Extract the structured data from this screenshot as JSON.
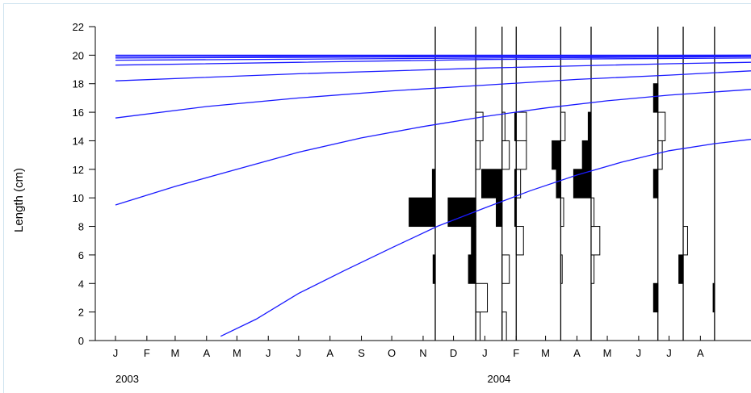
{
  "chart_data": {
    "type": "line",
    "title": "",
    "ylabel": "Length (cm)",
    "xlabel": "",
    "ylim": [
      0,
      22
    ],
    "yticks": [
      0,
      2,
      4,
      6,
      8,
      10,
      12,
      14,
      16,
      18,
      20,
      22
    ],
    "xlim": [
      "2003-01-01",
      "2004-09-20"
    ],
    "month_ticks": [
      {
        "label": "J",
        "date": "2003-01-01"
      },
      {
        "label": "F",
        "date": "2003-02-01"
      },
      {
        "label": "M",
        "date": "2003-03-01"
      },
      {
        "label": "A",
        "date": "2003-04-01"
      },
      {
        "label": "M",
        "date": "2003-05-01"
      },
      {
        "label": "J",
        "date": "2003-06-01"
      },
      {
        "label": "J",
        "date": "2003-07-01"
      },
      {
        "label": "A",
        "date": "2003-08-01"
      },
      {
        "label": "S",
        "date": "2003-09-01"
      },
      {
        "label": "O",
        "date": "2003-10-01"
      },
      {
        "label": "N",
        "date": "2003-11-01"
      },
      {
        "label": "D",
        "date": "2003-12-01"
      },
      {
        "label": "J",
        "date": "2004-01-01"
      },
      {
        "label": "F",
        "date": "2004-02-01"
      },
      {
        "label": "M",
        "date": "2004-03-01"
      },
      {
        "label": "A",
        "date": "2004-04-01"
      },
      {
        "label": "M",
        "date": "2004-05-01"
      },
      {
        "label": "J",
        "date": "2004-06-01"
      },
      {
        "label": "J",
        "date": "2004-07-01"
      },
      {
        "label": "A",
        "date": "2004-08-01"
      }
    ],
    "year_labels": [
      {
        "label": "2003",
        "date": "2003-01-01"
      },
      {
        "label": "2004",
        "date": "2004-01-15"
      }
    ],
    "line_color": "#1a1aff",
    "growth_curves": [
      {
        "x": [
          "2003-04-15",
          "2003-05-20",
          "2003-07-01",
          "2003-08-15",
          "2003-10-01",
          "2003-11-15",
          "2004-01-01",
          "2004-02-15",
          "2004-04-01",
          "2004-05-15",
          "2004-07-01",
          "2004-08-15",
          "2004-09-20"
        ],
        "y": [
          0.3,
          1.5,
          3.3,
          4.9,
          6.5,
          8.0,
          9.3,
          10.5,
          11.6,
          12.5,
          13.3,
          13.8,
          14.1
        ]
      },
      {
        "x": [
          "2003-01-01",
          "2003-03-01",
          "2003-05-01",
          "2003-07-01",
          "2003-09-01",
          "2003-11-01",
          "2004-01-01",
          "2004-03-01",
          "2004-05-01",
          "2004-07-01",
          "2004-09-20"
        ],
        "y": [
          9.5,
          10.8,
          12.0,
          13.2,
          14.2,
          15.0,
          15.7,
          16.3,
          16.8,
          17.2,
          17.6
        ]
      },
      {
        "x": [
          "2003-01-01",
          "2003-04-01",
          "2003-07-01",
          "2003-10-01",
          "2004-01-01",
          "2004-04-01",
          "2004-07-01",
          "2004-09-20"
        ],
        "y": [
          15.6,
          16.4,
          17.0,
          17.5,
          17.9,
          18.3,
          18.6,
          18.9
        ]
      },
      {
        "x": [
          "2003-01-01",
          "2003-07-01",
          "2004-01-01",
          "2004-07-01",
          "2004-09-20"
        ],
        "y": [
          18.2,
          18.7,
          19.1,
          19.4,
          19.5
        ]
      },
      {
        "x": [
          "2003-01-01",
          "2003-07-01",
          "2004-01-01",
          "2004-09-20"
        ],
        "y": [
          19.3,
          19.5,
          19.7,
          19.8
        ]
      },
      {
        "x": [
          "2003-01-01",
          "2004-09-20"
        ],
        "y": [
          19.65,
          19.9
        ]
      },
      {
        "x": [
          "2003-01-01",
          "2004-09-20"
        ],
        "y": [
          19.8,
          19.95
        ]
      },
      {
        "x": [
          "2003-01-01",
          "2004-09-20"
        ],
        "y": [
          19.9,
          20.0
        ]
      },
      {
        "x": [
          "2003-01-01",
          "2004-09-20"
        ],
        "y": [
          20.0,
          20.0
        ]
      }
    ],
    "samples": [
      {
        "date": "2003-11-13",
        "black": [
          [
            4,
            6,
            0.15
          ],
          [
            8,
            10,
            1.8
          ],
          [
            10,
            12,
            0.2
          ]
        ],
        "white": []
      },
      {
        "date": "2003-12-23",
        "black": [
          [
            4,
            6,
            0.5
          ],
          [
            6,
            8,
            0.3
          ],
          [
            8,
            10,
            1.9
          ]
        ],
        "white": [
          [
            0,
            2,
            0.3
          ],
          [
            2,
            4,
            0.8
          ],
          [
            12,
            14,
            0.3
          ],
          [
            14,
            16,
            0.5
          ]
        ]
      },
      {
        "date": "2004-01-18",
        "black": [
          [
            8,
            10,
            0.4
          ],
          [
            10,
            12,
            1.4
          ]
        ],
        "white": [
          [
            0,
            2,
            0.3
          ],
          [
            4,
            6,
            0.5
          ],
          [
            12,
            14,
            0.5
          ],
          [
            14,
            16,
            0.2
          ]
        ]
      },
      {
        "date": "2004-02-01",
        "black": [
          [
            8,
            10,
            0.1
          ],
          [
            10,
            12,
            0.1
          ],
          [
            14,
            16,
            0.1
          ]
        ],
        "white": [
          [
            6,
            8,
            0.5
          ],
          [
            10,
            12,
            0.3
          ],
          [
            12,
            14,
            0.7
          ],
          [
            14,
            16,
            0.7
          ]
        ]
      },
      {
        "date": "2004-03-16",
        "black": [
          [
            10,
            12,
            0.3
          ],
          [
            12,
            14,
            0.6
          ]
        ],
        "white": [
          [
            4,
            6,
            0.1
          ],
          [
            8,
            10,
            0.2
          ],
          [
            14,
            16,
            0.3
          ]
        ]
      },
      {
        "date": "2004-04-15",
        "black": [
          [
            10,
            12,
            1.2
          ],
          [
            12,
            14,
            0.6
          ],
          [
            14,
            16,
            0.2
          ]
        ],
        "white": [
          [
            4,
            6,
            0.2
          ],
          [
            6,
            8,
            0.6
          ],
          [
            8,
            10,
            0.2
          ]
        ]
      },
      {
        "date": "2004-06-20",
        "black": [
          [
            2,
            4,
            0.3
          ],
          [
            10,
            12,
            0.3
          ],
          [
            16,
            18,
            0.3
          ]
        ],
        "white": [
          [
            14,
            16,
            0.5
          ],
          [
            12,
            14,
            0.3
          ]
        ]
      },
      {
        "date": "2004-07-15",
        "black": [
          [
            4,
            6,
            0.3
          ]
        ],
        "white": [
          [
            6,
            8,
            0.3
          ]
        ]
      },
      {
        "date": "2004-08-15",
        "black": [
          [
            2,
            4,
            0.1
          ]
        ],
        "white": []
      }
    ],
    "extra_gridlines": [
      "2003-11-13",
      "2003-12-23",
      "2004-01-18",
      "2004-02-01",
      "2004-03-16",
      "2004-04-15",
      "2004-06-20",
      "2004-07-15",
      "2004-08-15"
    ]
  }
}
